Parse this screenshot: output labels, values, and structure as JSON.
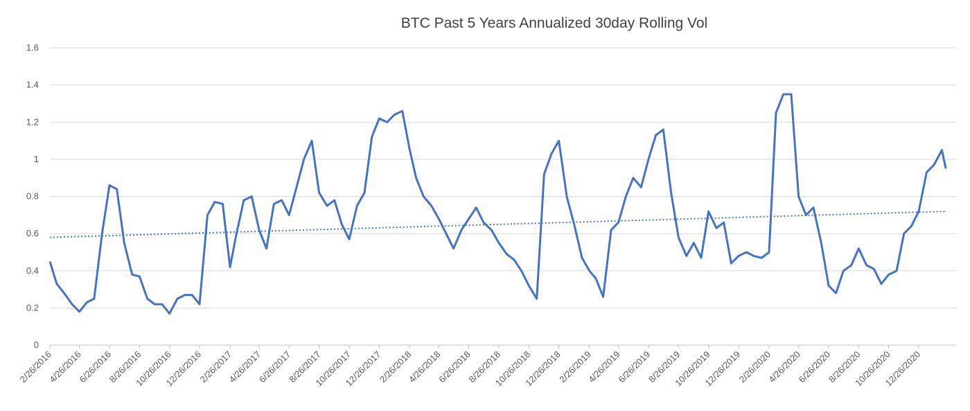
{
  "chart_data": {
    "type": "line",
    "title": "BTC Past 5 Years Annualized 30day Rolling Vol",
    "ylim": [
      0,
      1.6
    ],
    "yticks": [
      0,
      0.2,
      0.4,
      0.6,
      0.8,
      1,
      1.2,
      1.4,
      1.6
    ],
    "grid": true,
    "xlim": [
      "2/26/2016",
      "3/12/2021"
    ],
    "xticks": [
      "2/26/2016",
      "4/26/2016",
      "6/26/2016",
      "8/26/2016",
      "10/26/2016",
      "12/26/2016",
      "2/26/2017",
      "4/26/2017",
      "6/26/2017",
      "8/26/2017",
      "10/26/2017",
      "12/26/2017",
      "2/26/2018",
      "4/26/2018",
      "6/26/2018",
      "8/26/2018",
      "10/26/2018",
      "12/26/2018",
      "2/26/2019",
      "4/26/2019",
      "6/26/2019",
      "8/26/2019",
      "10/26/2019",
      "12/26/2019",
      "2/26/2020",
      "4/26/2020",
      "6/26/2020",
      "8/26/2020",
      "10/26/2020",
      "12/26/2020"
    ],
    "series": [
      {
        "color": "#4472c4",
        "line_style": "solid",
        "x": [
          "2/26/2016",
          "3/11/2016",
          "3/26/2016",
          "4/11/2016",
          "4/26/2016",
          "5/11/2016",
          "5/26/2016",
          "6/11/2016",
          "6/26/2016",
          "7/11/2016",
          "7/26/2016",
          "8/11/2016",
          "8/26/2016",
          "9/11/2016",
          "9/26/2016",
          "10/11/2016",
          "10/26/2016",
          "11/11/2016",
          "11/26/2016",
          "12/11/2016",
          "12/26/2016",
          "1/11/2017",
          "1/26/2017",
          "2/11/2017",
          "2/26/2017",
          "3/11/2017",
          "3/26/2017",
          "4/11/2017",
          "4/26/2017",
          "5/11/2017",
          "5/26/2017",
          "6/11/2017",
          "6/26/2017",
          "7/11/2017",
          "7/26/2017",
          "8/11/2017",
          "8/26/2017",
          "9/11/2017",
          "9/26/2017",
          "10/11/2017",
          "10/26/2017",
          "11/11/2017",
          "11/26/2017",
          "12/11/2017",
          "12/26/2017",
          "1/11/2018",
          "1/26/2018",
          "2/11/2018",
          "2/26/2018",
          "3/11/2018",
          "3/26/2018",
          "4/11/2018",
          "4/26/2018",
          "5/11/2018",
          "5/26/2018",
          "6/11/2018",
          "6/26/2018",
          "7/11/2018",
          "7/26/2018",
          "8/11/2018",
          "8/26/2018",
          "9/11/2018",
          "9/26/2018",
          "10/11/2018",
          "10/26/2018",
          "11/11/2018",
          "11/26/2018",
          "12/11/2018",
          "12/26/2018",
          "1/11/2019",
          "1/26/2019",
          "2/11/2019",
          "2/26/2019",
          "3/11/2019",
          "3/26/2019",
          "4/11/2019",
          "4/26/2019",
          "5/11/2019",
          "5/26/2019",
          "6/11/2019",
          "6/26/2019",
          "7/11/2019",
          "7/26/2019",
          "8/11/2019",
          "8/26/2019",
          "9/11/2019",
          "9/26/2019",
          "10/11/2019",
          "10/26/2019",
          "11/11/2019",
          "11/26/2019",
          "12/11/2019",
          "12/26/2019",
          "1/11/2020",
          "1/26/2020",
          "2/11/2020",
          "2/26/2020",
          "3/11/2020",
          "3/26/2020",
          "4/11/2020",
          "4/26/2020",
          "5/11/2020",
          "5/26/2020",
          "6/11/2020",
          "6/26/2020",
          "7/11/2020",
          "7/26/2020",
          "8/11/2020",
          "8/26/2020",
          "9/11/2020",
          "9/26/2020",
          "10/11/2020",
          "10/26/2020",
          "11/11/2020",
          "11/26/2020",
          "12/11/2020",
          "12/26/2020",
          "1/11/2021",
          "1/26/2021",
          "2/11/2021",
          "2/19/2021"
        ],
        "values": [
          0.45,
          0.33,
          0.28,
          0.22,
          0.18,
          0.23,
          0.25,
          0.6,
          0.86,
          0.84,
          0.55,
          0.38,
          0.37,
          0.25,
          0.22,
          0.22,
          0.17,
          0.25,
          0.27,
          0.27,
          0.22,
          0.7,
          0.77,
          0.76,
          0.42,
          0.6,
          0.78,
          0.8,
          0.62,
          0.52,
          0.76,
          0.78,
          0.7,
          0.85,
          1.0,
          1.1,
          0.82,
          0.75,
          0.78,
          0.65,
          0.57,
          0.75,
          0.82,
          1.12,
          1.22,
          1.2,
          1.24,
          1.26,
          1.05,
          0.9,
          0.8,
          0.75,
          0.68,
          0.6,
          0.52,
          0.62,
          0.68,
          0.74,
          0.66,
          0.62,
          0.55,
          0.49,
          0.46,
          0.4,
          0.32,
          0.25,
          0.92,
          1.03,
          1.1,
          0.8,
          0.65,
          0.47,
          0.4,
          0.36,
          0.26,
          0.62,
          0.66,
          0.8,
          0.9,
          0.85,
          1.0,
          1.13,
          1.16,
          0.82,
          0.58,
          0.48,
          0.55,
          0.47,
          0.72,
          0.63,
          0.66,
          0.44,
          0.48,
          0.5,
          0.48,
          0.47,
          0.5,
          1.25,
          1.35,
          1.35,
          0.8,
          0.7,
          0.74,
          0.55,
          0.32,
          0.28,
          0.4,
          0.43,
          0.52,
          0.43,
          0.41,
          0.33,
          0.38,
          0.4,
          0.6,
          0.64,
          0.72,
          0.93,
          0.97,
          1.05,
          0.95
        ]
      },
      {
        "color": "#4472c4",
        "line_style": "dotted",
        "x": [
          "2/26/2016",
          "2/19/2021"
        ],
        "values": [
          0.58,
          0.72
        ]
      }
    ]
  }
}
